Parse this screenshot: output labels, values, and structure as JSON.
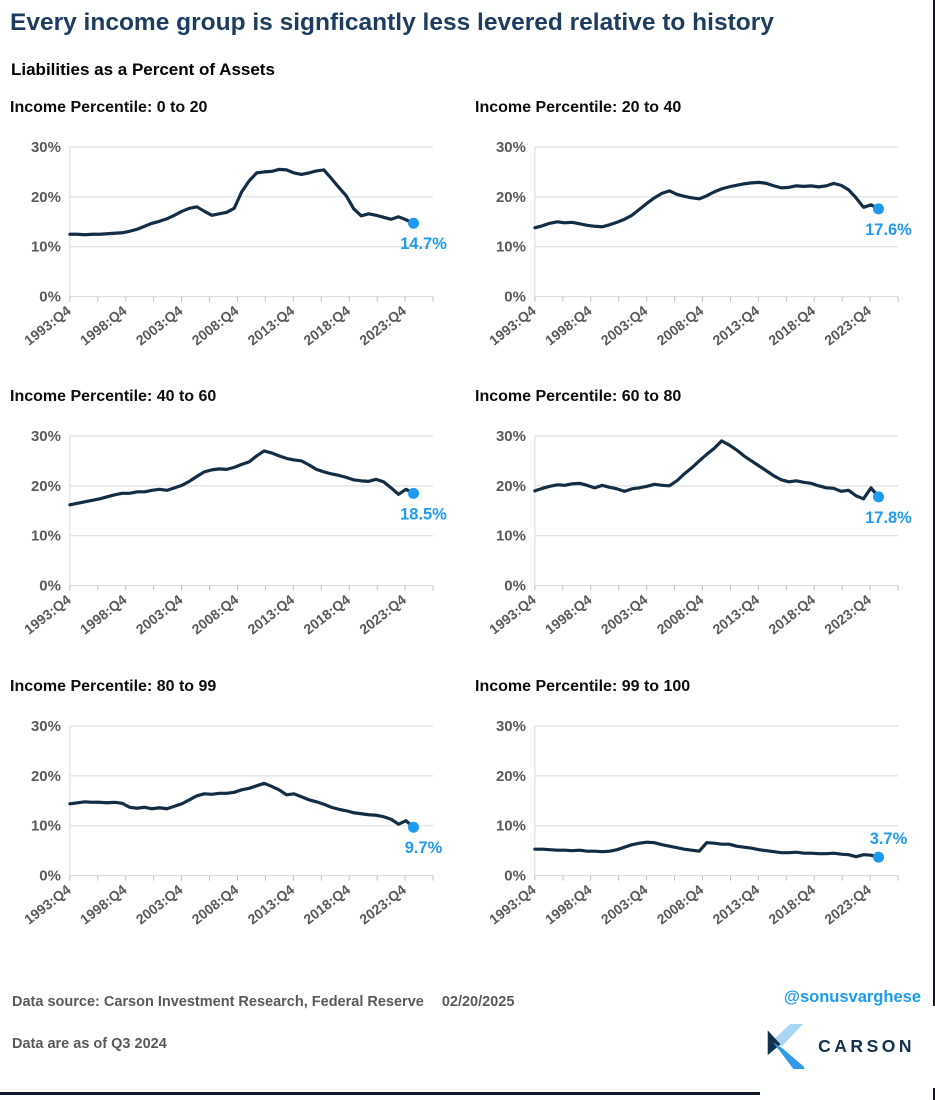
{
  "page": {
    "title": "Every income group is signficantly less levered relative to history",
    "subtitle": "Liabilities as a Percent of Assets"
  },
  "colors": {
    "title_navy": "#1d3c5e",
    "line_navy": "#132d44",
    "accent_blue": "#1e9bf0",
    "grid_gray": "#d9d9d9",
    "tick_gray": "#bfbfbf",
    "axis_text_gray": "#595959",
    "footer_text_gray": "#595959",
    "brand_navy": "#13304c",
    "brand_light_blue": "#a9d7f3",
    "brand_mid_blue": "#2e9ae8"
  },
  "chart_data": {
    "type": "line",
    "series_start": 1993.75,
    "series_end": 2024.5,
    "y_axis": {
      "max": 30,
      "ticks": [
        {
          "v": 0,
          "label": "0%"
        },
        {
          "v": 10,
          "label": "10%"
        },
        {
          "v": 20,
          "label": "20%"
        },
        {
          "v": 30,
          "label": "30%"
        }
      ]
    },
    "x_axis": {
      "start": 1993.75,
      "end": 2026.25,
      "minor_tick_step": 2.5,
      "major_ticks": [
        {
          "year": 1993.75,
          "label": "1993:Q4"
        },
        {
          "year": 1998.75,
          "label": "1998:Q4"
        },
        {
          "year": 2003.75,
          "label": "2003:Q4"
        },
        {
          "year": 2008.75,
          "label": "2008:Q4"
        },
        {
          "year": 2013.75,
          "label": "2013:Q4"
        },
        {
          "year": 2018.75,
          "label": "2018:Q4"
        },
        {
          "year": 2023.75,
          "label": "2023:Q4"
        }
      ]
    },
    "charts": [
      {
        "title": "Income Percentile: 0 to 20",
        "end_label": "14.7%",
        "end_label_position": "below",
        "values": [
          12.5,
          12.5,
          12.4,
          12.5,
          12.5,
          12.6,
          12.7,
          12.8,
          13.1,
          13.5,
          14.1,
          14.7,
          15.1,
          15.6,
          16.3,
          17.1,
          17.7,
          18.0,
          17.1,
          16.3,
          16.6,
          16.9,
          17.7,
          21.0,
          23.2,
          24.8,
          25.0,
          25.1,
          25.5,
          25.4,
          24.8,
          24.5,
          24.8,
          25.2,
          25.4,
          23.7,
          21.9,
          20.2,
          17.6,
          16.2,
          16.6,
          16.3,
          15.9,
          15.5,
          16.0,
          15.4,
          14.7
        ]
      },
      {
        "title": "Income Percentile: 20 to 40",
        "end_label": "17.6%",
        "end_label_position": "below",
        "values": [
          13.8,
          14.2,
          14.7,
          15.0,
          14.8,
          14.9,
          14.6,
          14.3,
          14.1,
          14.0,
          14.4,
          14.9,
          15.5,
          16.3,
          17.5,
          18.7,
          19.8,
          20.7,
          21.2,
          20.5,
          20.1,
          19.8,
          19.6,
          20.2,
          21.0,
          21.6,
          22.0,
          22.3,
          22.6,
          22.8,
          22.9,
          22.7,
          22.2,
          21.8,
          21.9,
          22.2,
          22.1,
          22.2,
          22.0,
          22.2,
          22.7,
          22.3,
          21.4,
          19.8,
          17.9,
          18.4,
          17.6
        ]
      },
      {
        "title": "Income Percentile: 40 to 60",
        "end_label": "18.5%",
        "end_label_position": "below",
        "values": [
          16.2,
          16.5,
          16.8,
          17.1,
          17.4,
          17.8,
          18.2,
          18.5,
          18.5,
          18.8,
          18.8,
          19.1,
          19.3,
          19.1,
          19.6,
          20.1,
          20.9,
          21.9,
          22.8,
          23.2,
          23.4,
          23.3,
          23.7,
          24.3,
          24.8,
          26.0,
          27.0,
          26.6,
          26.0,
          25.5,
          25.2,
          25.0,
          24.2,
          23.3,
          22.8,
          22.4,
          22.1,
          21.7,
          21.2,
          21.0,
          20.9,
          21.3,
          20.8,
          19.6,
          18.3,
          19.3,
          18.5
        ]
      },
      {
        "title": "Income Percentile: 60 to 80",
        "end_label": "17.8%",
        "end_label_position": "below",
        "values": [
          19.0,
          19.5,
          19.9,
          20.2,
          20.1,
          20.4,
          20.5,
          20.1,
          19.6,
          20.1,
          19.7,
          19.4,
          18.9,
          19.4,
          19.6,
          19.9,
          20.3,
          20.1,
          20.0,
          21.0,
          22.4,
          23.6,
          25.0,
          26.3,
          27.5,
          29.0,
          28.2,
          27.2,
          26.0,
          25.0,
          24.0,
          23.0,
          22.0,
          21.2,
          20.8,
          21.0,
          20.7,
          20.5,
          20.0,
          19.6,
          19.5,
          18.9,
          19.1,
          18.0,
          17.4,
          19.6,
          17.8
        ]
      },
      {
        "title": "Income Percentile: 80 to 99",
        "end_label": "9.7%",
        "end_label_position": "below",
        "values": [
          14.4,
          14.6,
          14.8,
          14.7,
          14.7,
          14.6,
          14.7,
          14.5,
          13.7,
          13.5,
          13.7,
          13.4,
          13.6,
          13.4,
          13.9,
          14.4,
          15.2,
          16.0,
          16.4,
          16.3,
          16.5,
          16.5,
          16.7,
          17.2,
          17.5,
          18.0,
          18.5,
          17.9,
          17.2,
          16.2,
          16.4,
          15.8,
          15.2,
          14.8,
          14.3,
          13.7,
          13.3,
          13.0,
          12.6,
          12.4,
          12.2,
          12.1,
          11.8,
          11.3,
          10.3,
          11.0,
          9.7
        ]
      },
      {
        "title": "Income Percentile: 99 to 100",
        "end_label": "3.7%",
        "end_label_position": "above",
        "values": [
          5.3,
          5.3,
          5.2,
          5.1,
          5.1,
          5.0,
          5.1,
          4.9,
          4.9,
          4.8,
          4.9,
          5.2,
          5.7,
          6.2,
          6.5,
          6.7,
          6.6,
          6.2,
          5.9,
          5.6,
          5.3,
          5.1,
          4.9,
          6.6,
          6.5,
          6.3,
          6.3,
          5.9,
          5.7,
          5.5,
          5.2,
          5.0,
          4.8,
          4.6,
          4.6,
          4.7,
          4.5,
          4.5,
          4.4,
          4.4,
          4.5,
          4.3,
          4.2,
          3.8,
          4.2,
          4.1,
          3.7
        ]
      }
    ]
  },
  "footer": {
    "source_label": "Data source: Carson Investment Research, Federal Reserve",
    "date": "02/20/2025",
    "as_of": "Data are as of Q3 2024",
    "handle": "@sonusvarghese",
    "brand": "CARSON"
  }
}
